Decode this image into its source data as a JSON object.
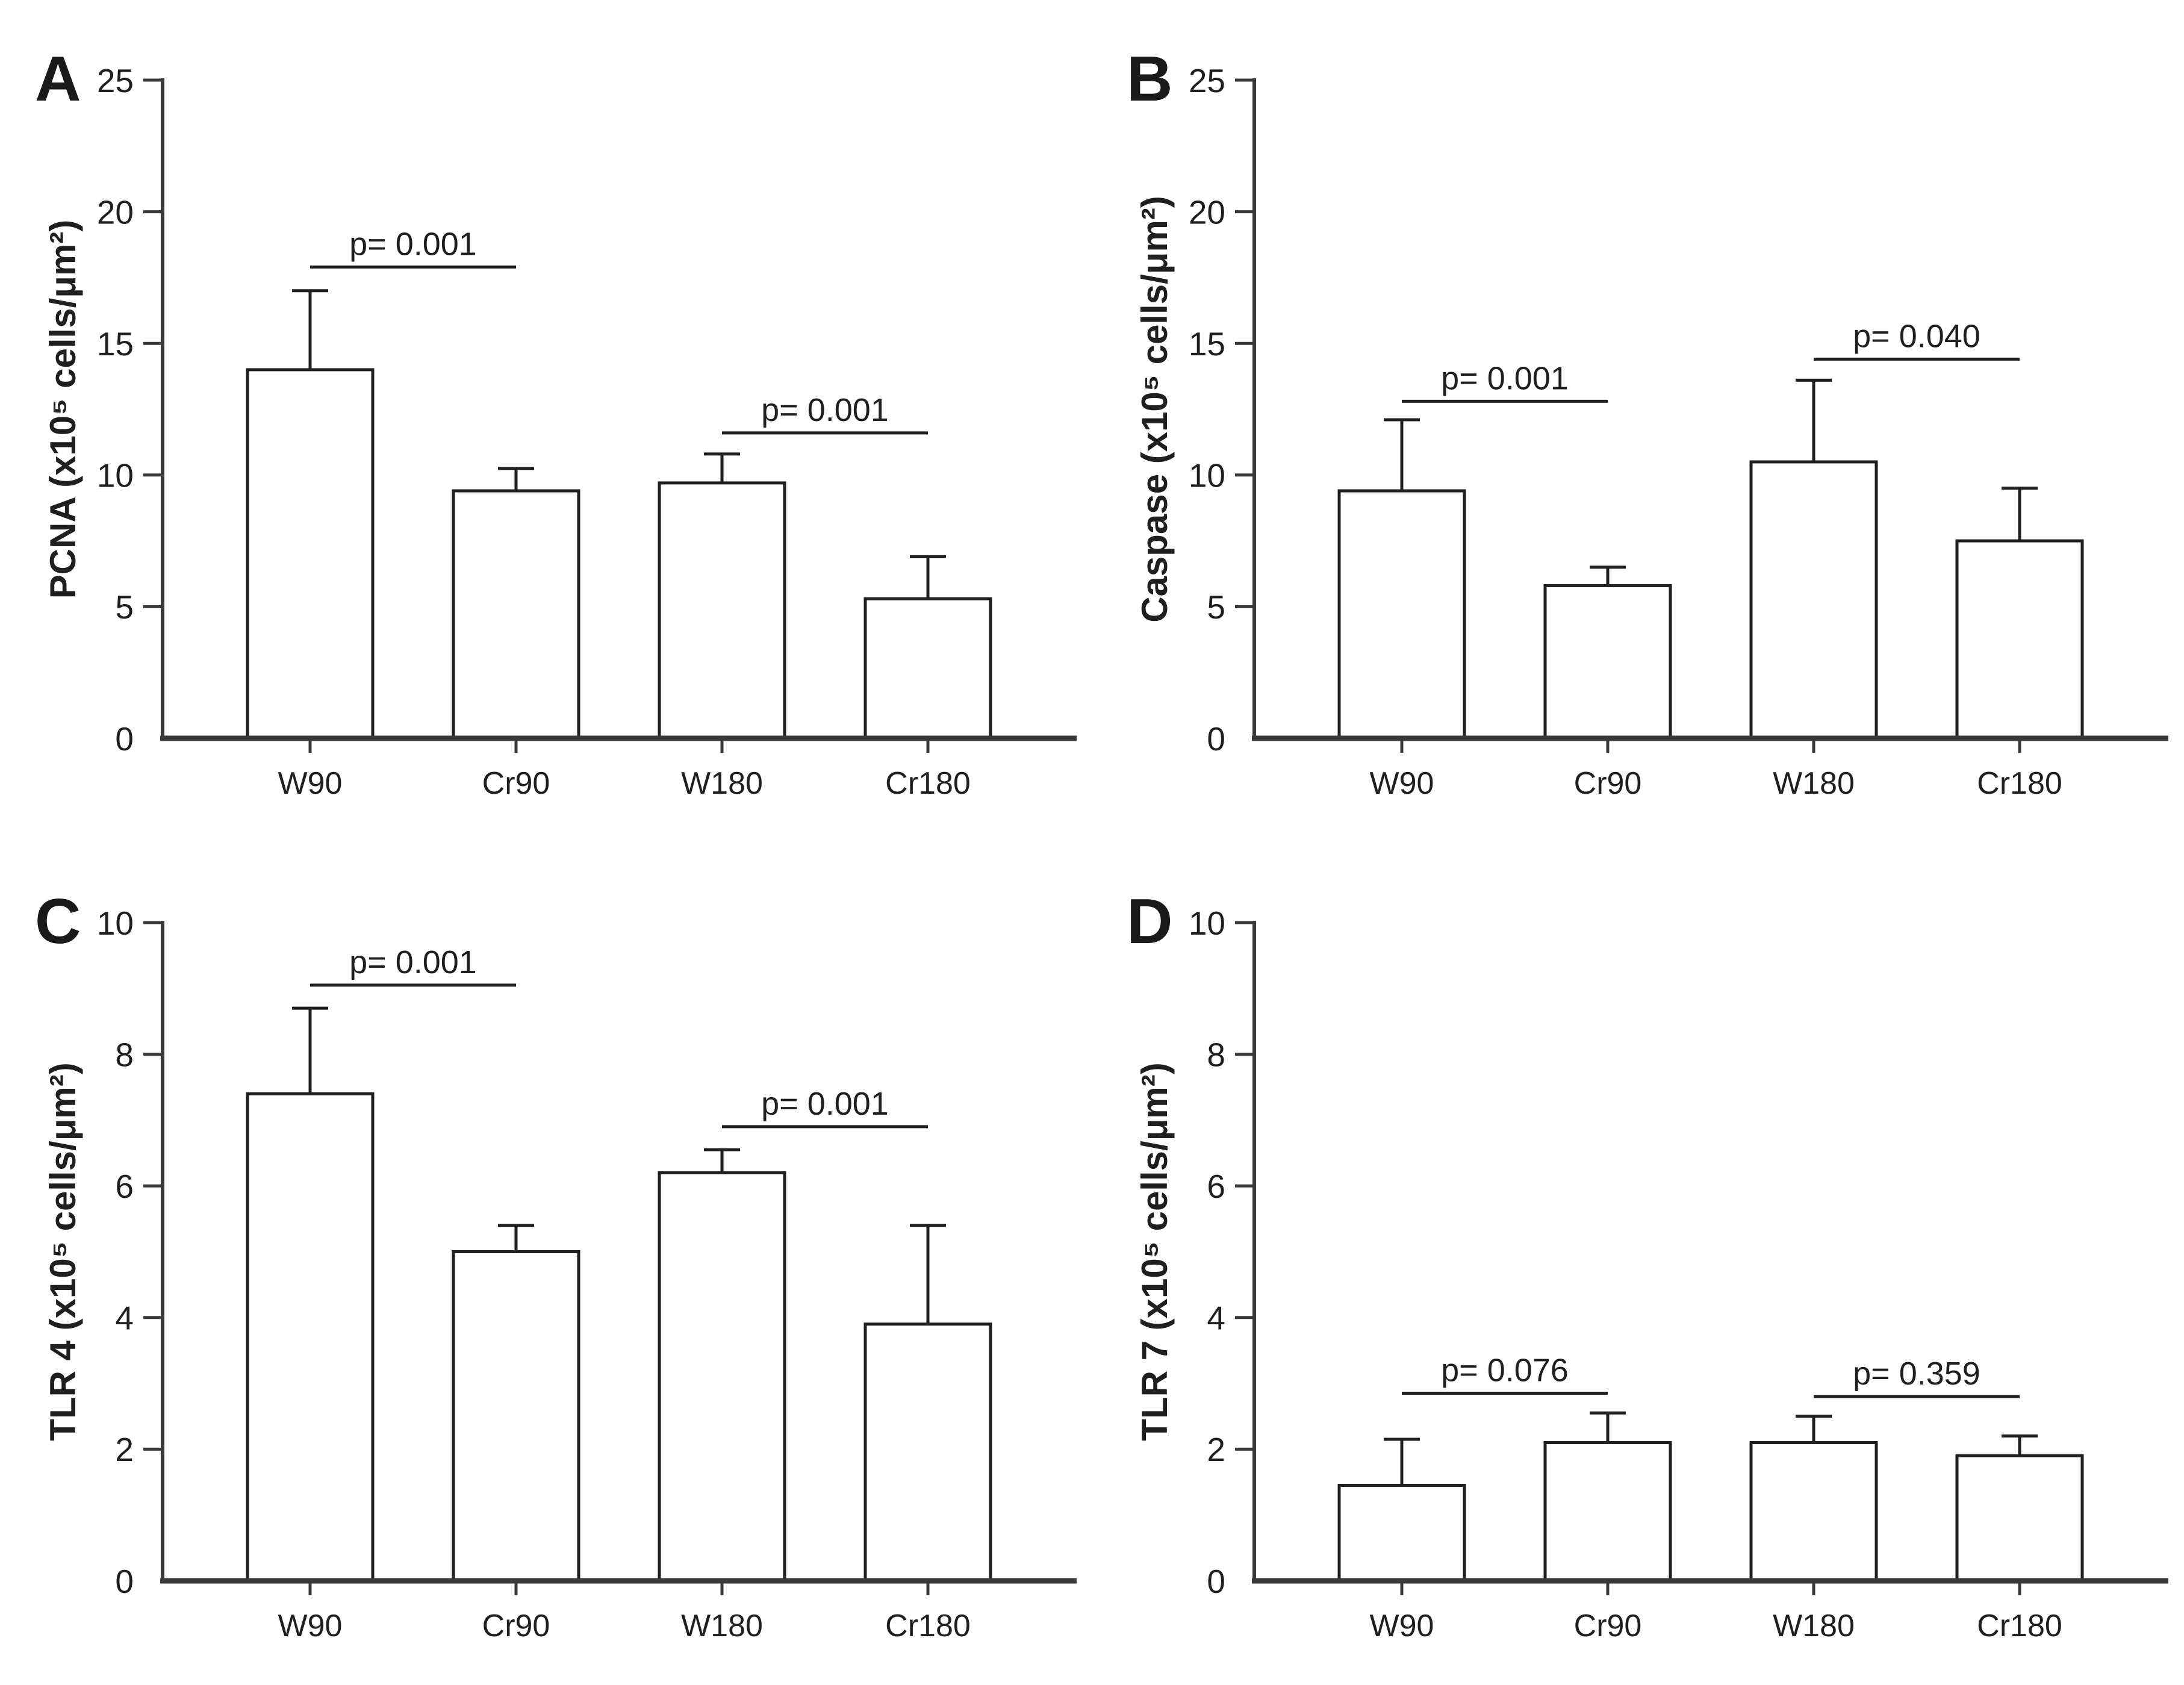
{
  "figure": {
    "background": "#ffffff",
    "ink_color": "#1f1f1f",
    "axis_color": "#3a3a3a",
    "bar_fill": "#ffffff",
    "panel_letters": [
      "A",
      "B",
      "C",
      "D"
    ]
  },
  "chart_data": [
    {
      "panel": "A",
      "type": "bar",
      "title": "",
      "xlabel": "",
      "ylabel": "PCNA (x10⁵ cells/μm²)",
      "categories": [
        "W90",
        "Cr90",
        "W180",
        "Cr180"
      ],
      "values": [
        14.0,
        9.4,
        9.7,
        5.3
      ],
      "errors_plus": [
        3.0,
        0.85,
        1.1,
        1.6
      ],
      "ylim": [
        0,
        25
      ],
      "yticks": [
        0,
        5,
        10,
        15,
        20,
        25
      ],
      "grid": false,
      "legend": "none",
      "significance": [
        {
          "from": "W90",
          "to": "Cr90",
          "label": "p= 0.001",
          "line_y": 17.9
        },
        {
          "from": "W180",
          "to": "Cr180",
          "label": "p= 0.001",
          "line_y": 11.6
        }
      ]
    },
    {
      "panel": "B",
      "type": "bar",
      "title": "",
      "xlabel": "",
      "ylabel": "Caspase (x10⁵ cells/μm²)",
      "categories": [
        "W90",
        "Cr90",
        "W180",
        "Cr180"
      ],
      "values": [
        9.4,
        5.8,
        10.5,
        7.5
      ],
      "errors_plus": [
        2.7,
        0.7,
        3.1,
        2.0
      ],
      "ylim": [
        0,
        25
      ],
      "yticks": [
        0,
        5,
        10,
        15,
        20,
        25
      ],
      "grid": false,
      "legend": "none",
      "significance": [
        {
          "from": "W90",
          "to": "Cr90",
          "label": "p= 0.001",
          "line_y": 12.8
        },
        {
          "from": "W180",
          "to": "Cr180",
          "label": "p= 0.040",
          "line_y": 14.4
        }
      ]
    },
    {
      "panel": "C",
      "type": "bar",
      "title": "",
      "xlabel": "",
      "ylabel": "TLR 4 (x10⁵ cells/μm²)",
      "categories": [
        "W90",
        "Cr90",
        "W180",
        "Cr180"
      ],
      "values": [
        7.4,
        5.0,
        6.2,
        3.9
      ],
      "errors_plus": [
        1.3,
        0.4,
        0.35,
        1.5
      ],
      "ylim": [
        0,
        10
      ],
      "yticks": [
        0,
        2,
        4,
        6,
        8,
        10
      ],
      "grid": false,
      "legend": "none",
      "significance": [
        {
          "from": "W90",
          "to": "Cr90",
          "label": "p= 0.001",
          "line_y": 9.05
        },
        {
          "from": "W180",
          "to": "Cr180",
          "label": "p= 0.001",
          "line_y": 6.9
        }
      ]
    },
    {
      "panel": "D",
      "type": "bar",
      "title": "",
      "xlabel": "",
      "ylabel": "TLR 7 (x10⁵ cells/μm²)",
      "categories": [
        "W90",
        "Cr90",
        "W180",
        "Cr180"
      ],
      "values": [
        1.45,
        2.1,
        2.1,
        1.9
      ],
      "errors_plus": [
        0.7,
        0.45,
        0.4,
        0.3
      ],
      "ylim": [
        0,
        10
      ],
      "yticks": [
        0,
        2,
        4,
        6,
        8,
        10
      ],
      "grid": false,
      "legend": "none",
      "significance": [
        {
          "from": "W90",
          "to": "Cr90",
          "label": "p= 0.076",
          "line_y": 2.85
        },
        {
          "from": "W180",
          "to": "Cr180",
          "label": "p= 0.359",
          "line_y": 2.8
        }
      ]
    }
  ]
}
